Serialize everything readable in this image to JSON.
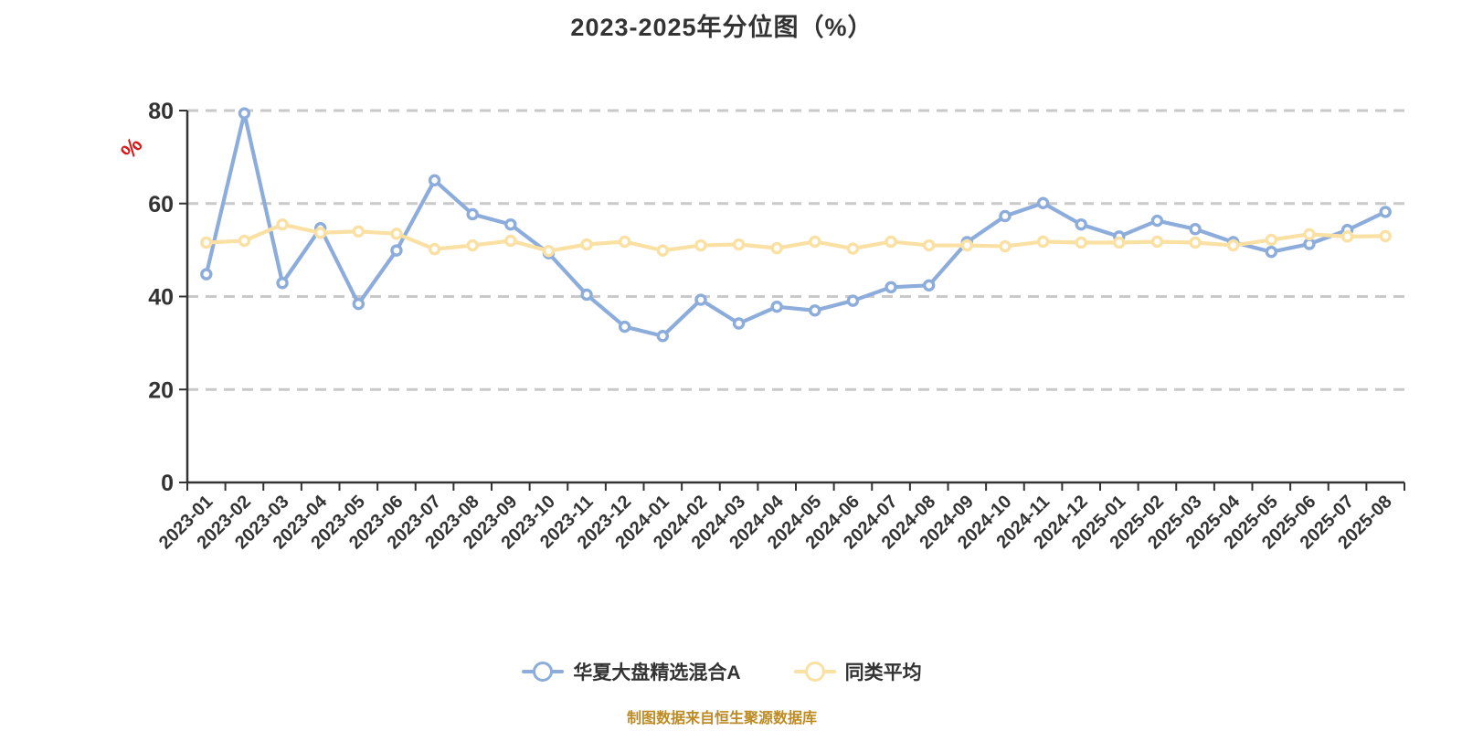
{
  "title": "2023-2025年分位图（%）",
  "y_axis_unit": "%",
  "footer": "制图数据来自恒生聚源数据库",
  "legend": [
    {
      "label": "华夏大盘精选混合A",
      "color": "#8cacdb"
    },
    {
      "label": "同类平均",
      "color": "#fae0a3"
    }
  ],
  "colors": {
    "axis": "#333333",
    "gridline": "#c9c9c9",
    "tick_label": "#333333",
    "unit_label_red": "#dc1414",
    "series_fund": "#8cacdb",
    "series_average": "#fae0a3",
    "footer_gold": "#bd8b25"
  },
  "chart_data": {
    "type": "line",
    "title": "2023-2025年分位图（%）",
    "xlabel": "",
    "ylabel": "%",
    "ylim": [
      0,
      80
    ],
    "yticks": [
      0,
      20,
      40,
      60,
      80
    ],
    "grid": "horizontal dashed",
    "legend_position": "bottom",
    "categories": [
      "2023-01",
      "2023-02",
      "2023-03",
      "2023-04",
      "2023-05",
      "2023-06",
      "2023-07",
      "2023-08",
      "2023-09",
      "2023-10",
      "2023-11",
      "2023-12",
      "2024-01",
      "2024-02",
      "2024-03",
      "2024-04",
      "2024-05",
      "2024-06",
      "2024-07",
      "2024-08",
      "2024-09",
      "2024-10",
      "2024-11",
      "2024-12",
      "2025-01",
      "2025-02",
      "2025-03",
      "2025-04",
      "2025-05",
      "2025-06",
      "2025-07",
      "2025-08"
    ],
    "series": [
      {
        "name": "华夏大盘精选混合A",
        "color": "#8cacdb",
        "values": [
          44.8,
          79.4,
          42.9,
          54.7,
          38.4,
          49.9,
          65.0,
          57.7,
          55.5,
          49.3,
          40.4,
          33.5,
          31.5,
          39.3,
          34.2,
          37.8,
          37.0,
          39.1,
          42.0,
          42.4,
          51.7,
          57.3,
          60.1,
          55.5,
          52.9,
          56.3,
          54.5,
          51.7,
          49.6,
          51.3,
          54.3,
          58.2
        ]
      },
      {
        "name": "同类平均",
        "color": "#fae0a3",
        "values": [
          51.6,
          52.0,
          55.5,
          53.7,
          54.0,
          53.5,
          50.2,
          51.0,
          52.0,
          49.8,
          51.2,
          51.8,
          49.9,
          51.0,
          51.2,
          50.4,
          51.8,
          50.3,
          51.8,
          51.0,
          51.0,
          50.8,
          51.8,
          51.6,
          51.6,
          51.8,
          51.6,
          51.0,
          52.2,
          53.4,
          52.9,
          53.0
        ]
      }
    ]
  }
}
